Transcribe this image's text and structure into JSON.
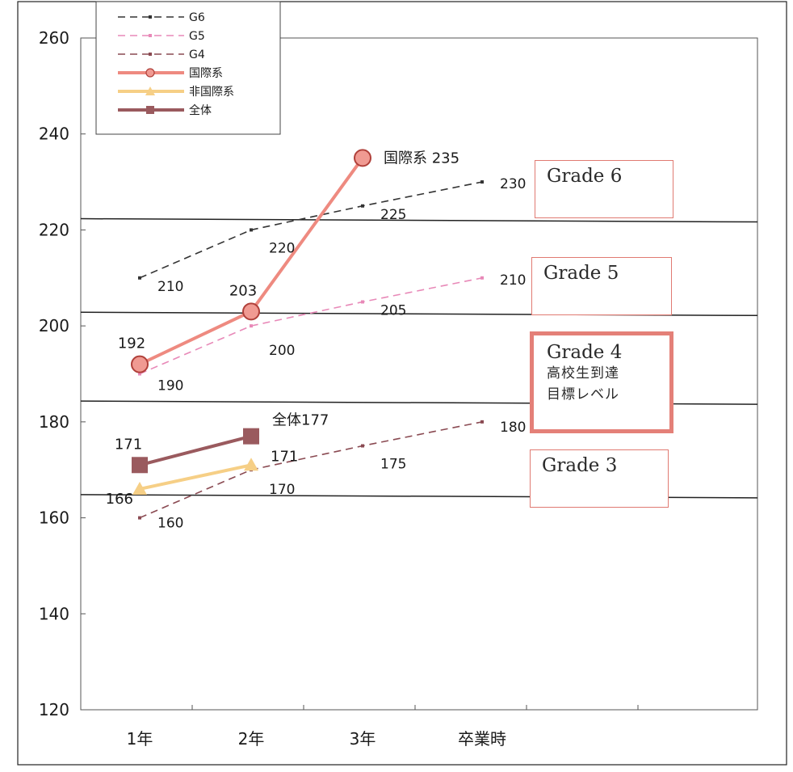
{
  "chart_data": {
    "type": "line",
    "categories": [
      "1年",
      "2年",
      "3年",
      "卒業時"
    ],
    "ylim": [
      120,
      260
    ],
    "yticks": [
      120,
      140,
      160,
      180,
      200,
      220,
      240,
      260
    ],
    "series": [
      {
        "name": "G6",
        "style": "dashed",
        "color": "#333333",
        "values": [
          210,
          220,
          225,
          230
        ],
        "labels": [
          "210",
          "220",
          "225",
          "230"
        ]
      },
      {
        "name": "G5",
        "style": "dashed",
        "color": "#e889b8",
        "values": [
          190,
          200,
          205,
          210
        ],
        "labels": [
          "190",
          "200",
          "205",
          "210"
        ]
      },
      {
        "name": "G4",
        "style": "dashed",
        "color": "#8a4a52",
        "values": [
          160,
          170,
          175,
          180
        ],
        "labels": [
          "160",
          "170",
          "175",
          "180"
        ]
      },
      {
        "name": "国際系",
        "style": "solid",
        "marker": "circle",
        "color": "#ee8a80",
        "values": [
          192,
          203,
          235,
          null
        ],
        "labels": [
          "192",
          "203",
          "国際系 235",
          ""
        ]
      },
      {
        "name": "非国際系",
        "style": "solid",
        "marker": "triangle",
        "color": "#f6cf86",
        "values": [
          166,
          171,
          null,
          null
        ],
        "labels": [
          "166",
          "171",
          "",
          ""
        ]
      },
      {
        "name": "全体",
        "style": "solid",
        "marker": "square",
        "color": "#9a5a5e",
        "values": [
          171,
          177,
          null,
          null
        ],
        "labels": [
          "171",
          "全体177",
          "",
          ""
        ]
      }
    ],
    "hlines": [
      222,
      202.5,
      184,
      164.5
    ],
    "grade_boxes": [
      {
        "label": "Grade 6",
        "sub": [],
        "emphasis": false
      },
      {
        "label": "Grade 5",
        "sub": [],
        "emphasis": false
      },
      {
        "label": "Grade 4",
        "sub": [
          "高校生到達",
          "目標レベル"
        ],
        "emphasis": true
      },
      {
        "label": "Grade 3",
        "sub": [],
        "emphasis": false
      }
    ],
    "legend_position": "top-left",
    "grid": false
  }
}
